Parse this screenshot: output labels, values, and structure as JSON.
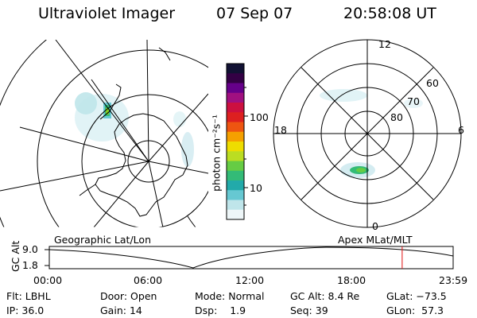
{
  "header": {
    "instrument": "Ultraviolet Imager",
    "date": "07 Sep 07",
    "time": "20:58:08 UT"
  },
  "colorbar": {
    "label": "photon cm⁻²s⁻¹",
    "ticks": [
      "100",
      "10"
    ],
    "colors": [
      "#111133",
      "#330044",
      "#66008a",
      "#a01080",
      "#cc1040",
      "#dd2020",
      "#ee5511",
      "#f5a000",
      "#eedd00",
      "#bbdd22",
      "#66cc44",
      "#33bb77",
      "#22aaaa",
      "#66c8d2",
      "#bfe5ea",
      "#eef6f8"
    ]
  },
  "left_panel": {
    "label": "Geographic Lat/Lon"
  },
  "right_panel": {
    "label": "Apex MLat/MLT",
    "mlt_labels": {
      "top": "12",
      "left": "18",
      "right": "6",
      "bottom": "0"
    },
    "lat_labels": [
      "60",
      "70",
      "80"
    ]
  },
  "timeline": {
    "ylabel": "GC Alt",
    "ymax": "9.0",
    "ymin": "1.8",
    "ticks": [
      "00:00",
      "06:00",
      "12:00",
      "18:00",
      "23:59"
    ],
    "current_time_hours": 20.97
  },
  "info": {
    "row1": [
      {
        "key": "Flt:",
        "value": "LBHL"
      },
      {
        "key": "Door:",
        "value": "Open"
      },
      {
        "key": "Mode:",
        "value": "Normal"
      },
      {
        "key": "GC Alt:",
        "value": "8.4 Re"
      },
      {
        "key": "GLat:",
        "value": "−73.5"
      }
    ],
    "row2": [
      {
        "key": "IP:",
        "value": "36.0"
      },
      {
        "key": "Gain:",
        "value": "14"
      },
      {
        "key": "Dsp:",
        "value": "1.9"
      },
      {
        "key": "Seq:",
        "value": "39"
      },
      {
        "key": "GLon:",
        "value": "57.3"
      }
    ]
  }
}
